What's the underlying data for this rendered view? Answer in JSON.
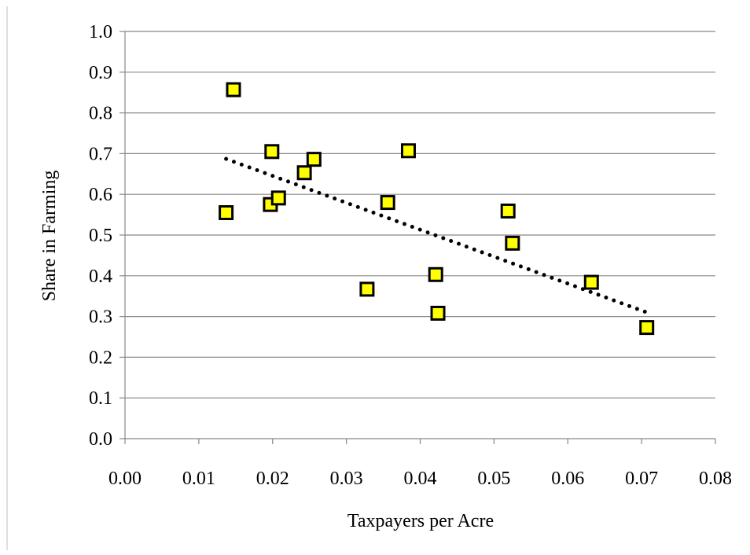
{
  "chart_data": {
    "type": "scatter",
    "title": "",
    "xlabel": "Taxpayers per Acre",
    "ylabel": "Share in Farming",
    "xlim": [
      0.0,
      0.08
    ],
    "ylim": [
      0.0,
      1.0
    ],
    "x_ticks": [
      "0.00",
      "0.01",
      "0.02",
      "0.03",
      "0.04",
      "0.05",
      "0.06",
      "0.07",
      "0.08"
    ],
    "y_ticks": [
      "0.0",
      "0.1",
      "0.2",
      "0.3",
      "0.4",
      "0.5",
      "0.6",
      "0.7",
      "0.8",
      "0.9",
      "1.0"
    ],
    "grid": "horizontal",
    "legend": "none",
    "series": [
      {
        "marker": "square",
        "marker_color": "#ffff00",
        "marker_edge": "#000000",
        "points": [
          {
            "x": 0.0137,
            "y": 0.555
          },
          {
            "x": 0.0147,
            "y": 0.857
          },
          {
            "x": 0.0197,
            "y": 0.575
          },
          {
            "x": 0.0199,
            "y": 0.705
          },
          {
            "x": 0.0208,
            "y": 0.591
          },
          {
            "x": 0.0243,
            "y": 0.653
          },
          {
            "x": 0.0256,
            "y": 0.686
          },
          {
            "x": 0.0328,
            "y": 0.367
          },
          {
            "x": 0.0356,
            "y": 0.58
          },
          {
            "x": 0.0384,
            "y": 0.707
          },
          {
            "x": 0.0421,
            "y": 0.403
          },
          {
            "x": 0.0424,
            "y": 0.308
          },
          {
            "x": 0.0519,
            "y": 0.559
          },
          {
            "x": 0.0525,
            "y": 0.48
          },
          {
            "x": 0.0632,
            "y": 0.384
          },
          {
            "x": 0.0707,
            "y": 0.273
          }
        ]
      }
    ],
    "trendline": {
      "style": "dotted",
      "color": "#000000",
      "x": [
        0.0137,
        0.0707
      ],
      "y": [
        0.687,
        0.31
      ]
    }
  }
}
